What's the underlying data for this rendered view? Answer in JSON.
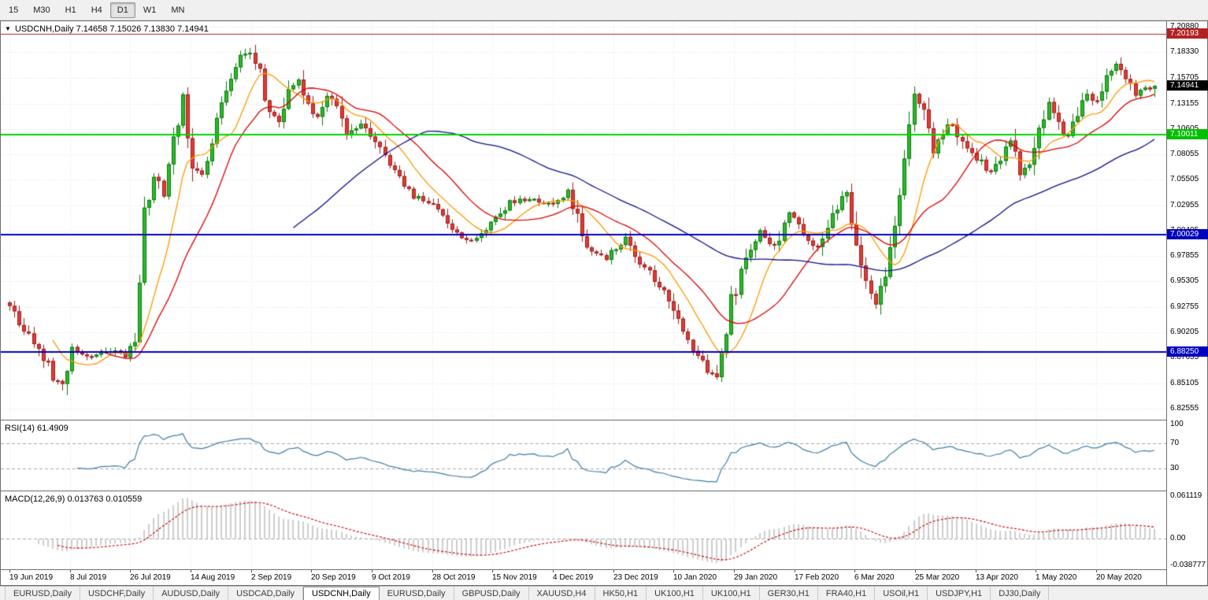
{
  "toolbar": {
    "timeframes": [
      {
        "label": "15",
        "active": false
      },
      {
        "label": "M30",
        "active": false
      },
      {
        "label": "H1",
        "active": false
      },
      {
        "label": "H4",
        "active": false
      },
      {
        "label": "D1",
        "active": true
      },
      {
        "label": "W1",
        "active": false
      },
      {
        "label": "MN",
        "active": false
      }
    ]
  },
  "chart": {
    "header": {
      "arrow": "▼",
      "symbol": "USDCNH,Daily",
      "ohlc": "7.14658 7.15026 7.13830 7.14941"
    },
    "price_axis": {
      "max": 7.2143,
      "min": 6.8143,
      "labels": [
        "7.20880",
        "7.18330",
        "7.15705",
        "7.13155",
        "7.10605",
        "7.08055",
        "7.05505",
        "7.02955",
        "7.00405",
        "6.97855",
        "6.95305",
        "6.92755",
        "6.90205",
        "6.87655",
        "6.85105",
        "6.82555"
      ]
    },
    "price_badges": [
      {
        "value": "7.20193",
        "price": 7.20193,
        "bg": "#b22222",
        "type": "resistance-level"
      },
      {
        "value": "7.14941",
        "price": 7.14941,
        "bg": "#000000",
        "type": "current-price"
      },
      {
        "value": "7.10011",
        "price": 7.10011,
        "bg": "#00c000",
        "type": "green-level"
      },
      {
        "value": "7.00029",
        "price": 7.00029,
        "bg": "#0000c0",
        "type": "blue-level-upper"
      },
      {
        "value": "6.88250",
        "price": 6.8825,
        "bg": "#0000c0",
        "type": "blue-level-lower"
      }
    ]
  },
  "rsi": {
    "header": "RSI(14) 61.4909",
    "axis_labels": [
      "100",
      "70",
      "30"
    ],
    "levels": [
      70,
      30
    ],
    "color": "#3d7ea6"
  },
  "macd": {
    "header": "MACD(12,26,9) 0.013763 0.010559",
    "axis_labels": [
      "0.061119",
      "0.00",
      "-0.038777"
    ],
    "hist_color": "#bfbfbf",
    "signal_color": "#cc0000",
    "render_scale": {
      "max": 0.068,
      "min": -0.046
    }
  },
  "time_axis": {
    "labels": [
      "19 Jun 2019",
      "8 Jul 2019",
      "26 Jul 2019",
      "14 Aug 2019",
      "2 Sep 2019",
      "20 Sep 2019",
      "9 Oct 2019",
      "28 Oct 2019",
      "15 Nov 2019",
      "4 Dec 2019",
      "23 Dec 2019",
      "10 Jan 2020",
      "29 Jan 2020",
      "17 Feb 2020",
      "6 Mar 2020",
      "25 Mar 2020",
      "13 Apr 2020",
      "1 May 2020",
      "20 May 2020"
    ]
  },
  "tabs": [
    {
      "label": "EURUSD,Daily",
      "active": false
    },
    {
      "label": "USDCHF,Daily",
      "active": false
    },
    {
      "label": "AUDUSD,Daily",
      "active": false
    },
    {
      "label": "USDCAD,Daily",
      "active": false
    },
    {
      "label": "USDCNH,Daily",
      "active": true
    },
    {
      "label": "EURUSD,Daily",
      "active": false
    },
    {
      "label": "GBPUSD,Daily",
      "active": false
    },
    {
      "label": "XAUUSD,H4",
      "active": false
    },
    {
      "label": "HK50,H1",
      "active": false
    },
    {
      "label": "UK100,H1",
      "active": false
    },
    {
      "label": "UK100,H1",
      "active": false
    },
    {
      "label": "GER30,H1",
      "active": false
    },
    {
      "label": "FRA40,H1",
      "active": false
    },
    {
      "label": "USOil,H1",
      "active": false
    },
    {
      "label": "USDJPY,H1",
      "active": false
    },
    {
      "label": "DJ30,Daily",
      "active": false
    }
  ],
  "chart_data": {
    "type": "candlestick",
    "symbol": "USDCNH",
    "timeframe": "Daily",
    "candle_count": 239,
    "visible_range": {
      "start": "19 Jun 2019",
      "end": "20 May 2020"
    },
    "last_candle": {
      "o": 7.14658,
      "h": 7.15026,
      "l": 7.1383,
      "c": 7.14941
    },
    "waypoints": [
      [
        0,
        6.928
      ],
      [
        3,
        6.906
      ],
      [
        6,
        6.888
      ],
      [
        9,
        6.858
      ],
      [
        11,
        6.849
      ],
      [
        13,
        6.886
      ],
      [
        17,
        6.877
      ],
      [
        21,
        6.883
      ],
      [
        24,
        6.879
      ],
      [
        26,
        6.891
      ],
      [
        28,
        7.025
      ],
      [
        30,
        7.058
      ],
      [
        32,
        7.042
      ],
      [
        34,
        7.096
      ],
      [
        36,
        7.138
      ],
      [
        38,
        7.072
      ],
      [
        40,
        7.057
      ],
      [
        42,
        7.088
      ],
      [
        44,
        7.132
      ],
      [
        46,
        7.158
      ],
      [
        48,
        7.178
      ],
      [
        50,
        7.186
      ],
      [
        52,
        7.162
      ],
      [
        54,
        7.122
      ],
      [
        56,
        7.112
      ],
      [
        58,
        7.146
      ],
      [
        60,
        7.156
      ],
      [
        62,
        7.132
      ],
      [
        64,
        7.117
      ],
      [
        66,
        7.142
      ],
      [
        68,
        7.127
      ],
      [
        70,
        7.097
      ],
      [
        73,
        7.112
      ],
      [
        76,
        7.092
      ],
      [
        80,
        7.062
      ],
      [
        84,
        7.038
      ],
      [
        88,
        7.032
      ],
      [
        92,
        7.002
      ],
      [
        96,
        6.992
      ],
      [
        100,
        7.012
      ],
      [
        104,
        7.032
      ],
      [
        108,
        7.036
      ],
      [
        112,
        7.031
      ],
      [
        116,
        7.042
      ],
      [
        120,
        6.988
      ],
      [
        124,
        6.976
      ],
      [
        128,
        6.996
      ],
      [
        132,
        6.967
      ],
      [
        136,
        6.942
      ],
      [
        140,
        6.902
      ],
      [
        144,
        6.872
      ],
      [
        147,
        6.852
      ],
      [
        150,
        6.932
      ],
      [
        153,
        6.976
      ],
      [
        156,
        7.002
      ],
      [
        159,
        6.987
      ],
      [
        162,
        7.022
      ],
      [
        165,
        7.002
      ],
      [
        168,
        6.987
      ],
      [
        171,
        7.022
      ],
      [
        174,
        7.042
      ],
      [
        176,
        6.992
      ],
      [
        178,
        6.952
      ],
      [
        180,
        6.932
      ],
      [
        182,
        6.962
      ],
      [
        184,
        7.002
      ],
      [
        186,
        7.082
      ],
      [
        188,
        7.142
      ],
      [
        190,
        7.122
      ],
      [
        192,
        7.082
      ],
      [
        194,
        7.102
      ],
      [
        196,
        7.112
      ],
      [
        198,
        7.092
      ],
      [
        200,
        7.082
      ],
      [
        202,
        7.072
      ],
      [
        204,
        7.062
      ],
      [
        206,
        7.077
      ],
      [
        208,
        7.092
      ],
      [
        210,
        7.062
      ],
      [
        212,
        7.072
      ],
      [
        214,
        7.102
      ],
      [
        216,
        7.132
      ],
      [
        218,
        7.112
      ],
      [
        220,
        7.097
      ],
      [
        222,
        7.122
      ],
      [
        224,
        7.142
      ],
      [
        226,
        7.132
      ],
      [
        228,
        7.156
      ],
      [
        230,
        7.172
      ],
      [
        232,
        7.156
      ],
      [
        234,
        7.142
      ],
      [
        236,
        7.146
      ],
      [
        238,
        7.14941
      ]
    ],
    "horizontal_lines": [
      {
        "price": 7.20193,
        "color": "#b22222",
        "width": 1
      },
      {
        "price": 7.10011,
        "color": "#00d500",
        "width": 2
      },
      {
        "price": 7.00029,
        "color": "#0000c0",
        "width": 2
      },
      {
        "price": 6.8825,
        "color": "#0000c0",
        "width": 2
      }
    ],
    "moving_averages": [
      {
        "period": 10,
        "color": "#ff9900"
      },
      {
        "period": 20,
        "color": "#dd0000"
      },
      {
        "period": 60,
        "color": "#10108c"
      }
    ],
    "indicators": [
      {
        "name": "RSI",
        "period": 14,
        "value": 61.4909
      },
      {
        "name": "MACD",
        "params": [
          12,
          26,
          9
        ],
        "values": [
          0.013763,
          0.010559
        ]
      }
    ],
    "colors": {
      "up_fill": "#2db82d",
      "up_border": "#0a7a0a",
      "down_fill": "#e03c32",
      "down_border": "#9c1f1f",
      "grid": "#e7e7e7",
      "level_dash": "#a8a8a8",
      "background": "#ffffff"
    }
  }
}
